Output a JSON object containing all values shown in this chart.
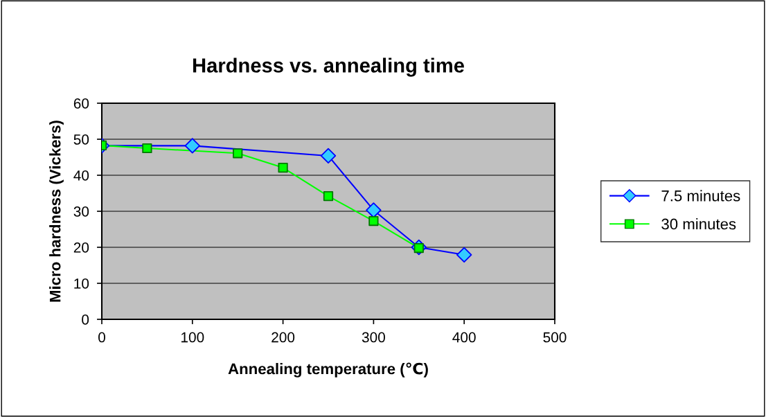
{
  "chart_data": {
    "type": "line",
    "title": "Hardness vs. annealing time",
    "xlabel": "Annealing temperature (℃)",
    "ylabel": "Micro hardness (Vickers)",
    "xlim": [
      0,
      500
    ],
    "xticks": [
      0,
      100,
      200,
      300,
      400,
      500
    ],
    "ylim": [
      0,
      60
    ],
    "yticks": [
      0,
      10,
      20,
      30,
      40,
      50,
      60
    ],
    "grid": "y",
    "legend": "right",
    "series": [
      {
        "name": "7.5 minutes",
        "color": "#0000ff",
        "marker": "diamond",
        "x": [
          0,
          100,
          250,
          300,
          350,
          400
        ],
        "values": [
          48.2,
          48.2,
          45.4,
          30.3,
          20.0,
          17.9
        ]
      },
      {
        "name": "30 minutes",
        "color": "#00ff00",
        "marker": "square",
        "x": [
          0,
          50,
          150,
          200,
          250,
          300,
          350
        ],
        "values": [
          48.3,
          47.5,
          46.1,
          42.1,
          34.2,
          27.3,
          19.8
        ]
      }
    ]
  }
}
